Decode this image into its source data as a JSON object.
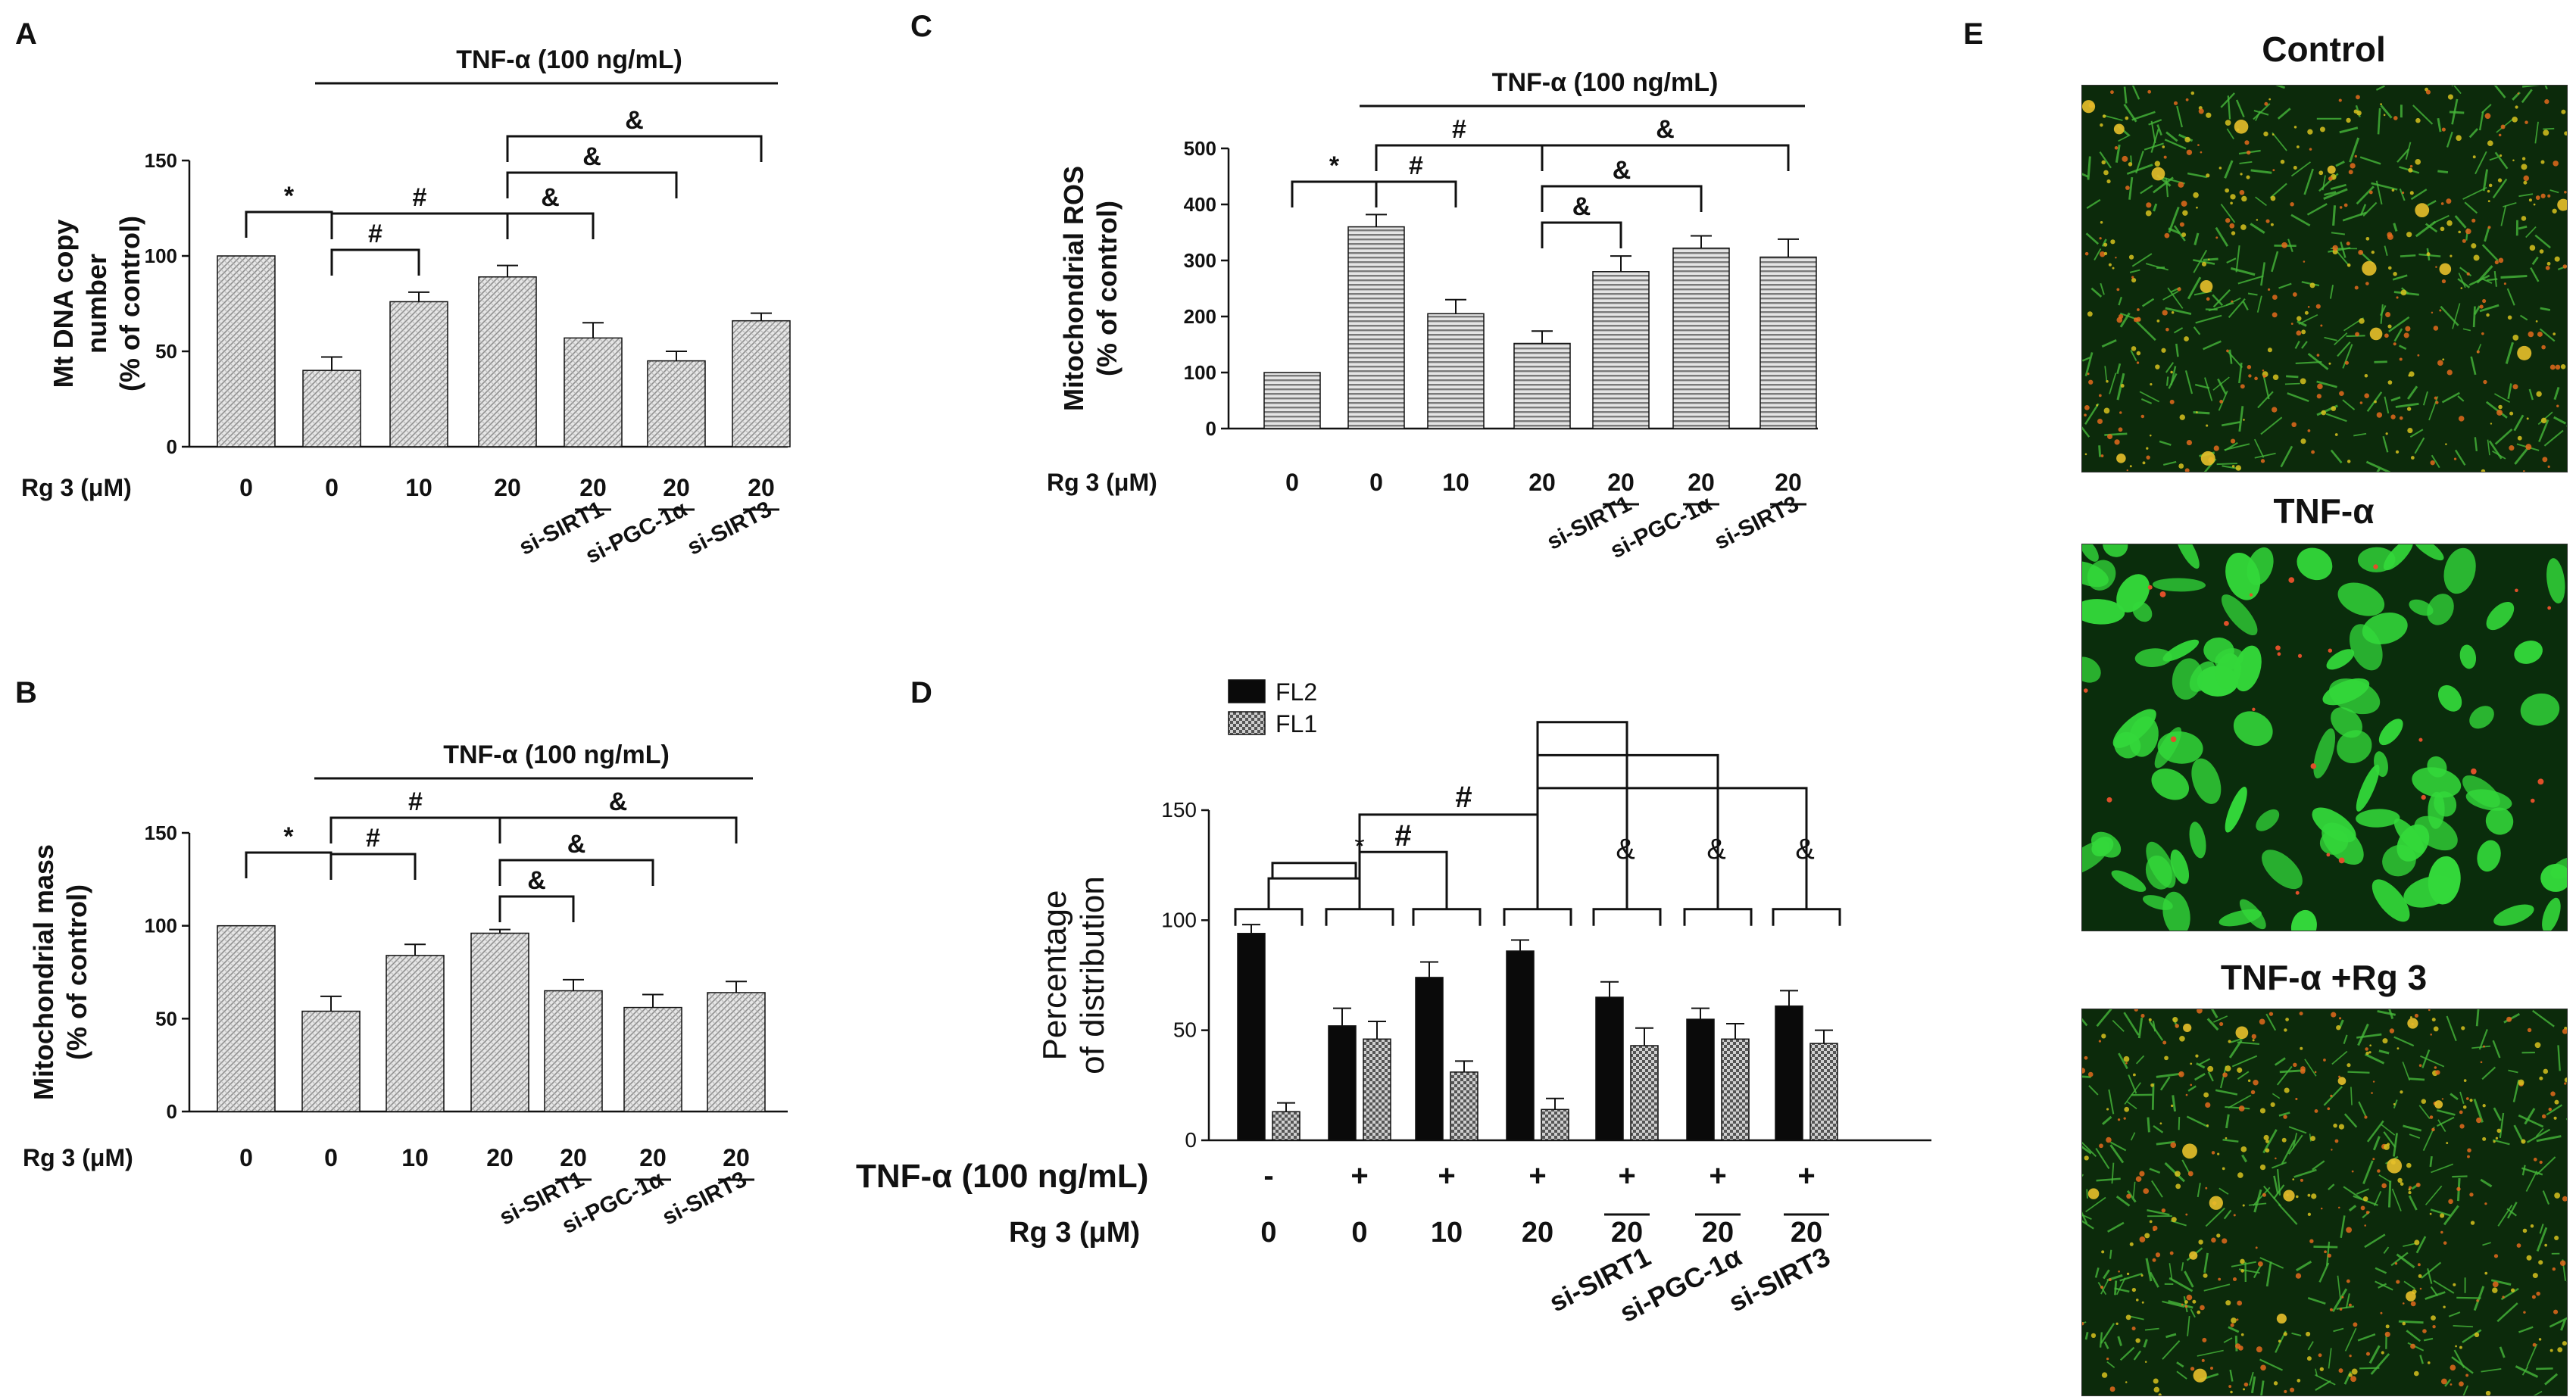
{
  "colors": {
    "bar_hatch": "#d9d9d9",
    "bar_hlines": "#8a8a8a",
    "bar_black": "#0a0a0a",
    "bar_checker": "#6f6f6f",
    "axis": "#111111",
    "micro_green": "#2fd12f",
    "micro_red": "#e0601a"
  },
  "chart_data": [
    {
      "panel": "A",
      "type": "bar",
      "ylabel": [
        "Mt DNA copy",
        "number",
        "(% of control)"
      ],
      "ylim": [
        0,
        150
      ],
      "yticks": [
        "0",
        "50",
        "100",
        "150"
      ],
      "xlabel": "Rg 3 (μM)",
      "categories": [
        "0",
        "0",
        "10",
        "20",
        "20",
        "20",
        "20"
      ],
      "values": [
        100,
        40,
        76,
        89,
        57,
        45,
        66
      ],
      "errors": [
        0,
        7,
        5,
        6,
        8,
        5,
        4
      ],
      "si_labels": [
        "si-SIRT1",
        "si-PGC-1α",
        "si-SIRT3"
      ],
      "treatment_label": "TNF-α (100 ng/mL)",
      "significance": [
        {
          "mark": "*",
          "from": 0,
          "to": 1,
          "level": 0
        },
        {
          "mark": "#",
          "from": 1,
          "to": 2,
          "level": 0
        },
        {
          "mark": "#",
          "from": 1,
          "to": 3,
          "level": 1
        },
        {
          "mark": "&",
          "from": 3,
          "to": 4,
          "level": 0
        },
        {
          "mark": "&",
          "from": 3,
          "to": 5,
          "level": 1
        },
        {
          "mark": "&",
          "from": 3,
          "to": 6,
          "level": 2
        }
      ]
    },
    {
      "panel": "B",
      "type": "bar",
      "ylabel": [
        "Mitochondrial mass",
        "(% of control)"
      ],
      "ylim": [
        0,
        150
      ],
      "yticks": [
        "0",
        "50",
        "100",
        "150"
      ],
      "xlabel": "Rg 3 (μM)",
      "categories": [
        "0",
        "0",
        "10",
        "20",
        "20",
        "20",
        "20"
      ],
      "values": [
        100,
        54,
        84,
        96,
        65,
        56,
        64
      ],
      "errors": [
        0,
        8,
        6,
        2,
        6,
        7,
        6
      ],
      "si_labels": [
        "si-SIRT1",
        "si-PGC-1α",
        "si-SIRT3"
      ],
      "treatment_label": "TNF-α (100 ng/mL)",
      "significance": [
        {
          "mark": "*",
          "from": 0,
          "to": 1,
          "level": 0
        },
        {
          "mark": "#",
          "from": 1,
          "to": 2,
          "level": 0
        },
        {
          "mark": "#",
          "from": 1,
          "to": 3,
          "level": 1
        },
        {
          "mark": "&",
          "from": 3,
          "to": 4,
          "level": 0
        },
        {
          "mark": "&",
          "from": 3,
          "to": 5,
          "level": 1
        },
        {
          "mark": "&",
          "from": 3,
          "to": 6,
          "level": 2
        }
      ]
    },
    {
      "panel": "C",
      "type": "bar",
      "ylabel": [
        "Mitochondrial ROS",
        "(% of control)"
      ],
      "ylim": [
        0,
        500
      ],
      "yticks": [
        "0",
        "100",
        "200",
        "300",
        "400",
        "500"
      ],
      "xlabel": "Rg 3 (μM)",
      "categories": [
        "0",
        "0",
        "10",
        "20",
        "20",
        "20",
        "20"
      ],
      "values": [
        100,
        360,
        205,
        152,
        280,
        322,
        306
      ],
      "errors": [
        0,
        22,
        25,
        22,
        28,
        22,
        32
      ],
      "si_labels": [
        "si-SIRT1",
        "si-PGC-1α",
        "si-SIRT3"
      ],
      "treatment_label": "TNF-α (100 ng/mL)",
      "significance": [
        {
          "mark": "*",
          "from": 0,
          "to": 1,
          "level": 0
        },
        {
          "mark": "#",
          "from": 1,
          "to": 2,
          "level": 0
        },
        {
          "mark": "#",
          "from": 1,
          "to": 3,
          "level": 1
        },
        {
          "mark": "&",
          "from": 3,
          "to": 4,
          "level": 0
        },
        {
          "mark": "&",
          "from": 3,
          "to": 5,
          "level": 1
        },
        {
          "mark": "&",
          "from": 3,
          "to": 6,
          "level": 2
        }
      ]
    },
    {
      "panel": "D",
      "type": "bar",
      "ylabel": [
        "Percentage",
        "of distribution"
      ],
      "ylim": [
        0,
        150
      ],
      "yticks": [
        "0",
        "50",
        "100",
        "150"
      ],
      "legend": [
        "FL2",
        "FL1"
      ],
      "treatment_label": "TNF-α (100 ng/mL)",
      "treatment_signs": [
        "-",
        "+",
        "+",
        "+",
        "+",
        "+",
        "+"
      ],
      "xlabel": "Rg 3 (μM)",
      "categories": [
        "0",
        "0",
        "10",
        "20",
        "20",
        "20",
        "20"
      ],
      "si_labels": [
        "si-SIRT1",
        "si-PGC-1α",
        "si-SIRT3"
      ],
      "series": [
        {
          "name": "FL2",
          "values": [
            94,
            52,
            74,
            86,
            65,
            55,
            61
          ],
          "errors": [
            4,
            8,
            7,
            5,
            7,
            5,
            7
          ]
        },
        {
          "name": "FL1",
          "values": [
            13,
            46,
            31,
            14,
            43,
            46,
            44
          ],
          "errors": [
            4,
            8,
            5,
            5,
            8,
            7,
            6
          ]
        }
      ],
      "significance": [
        {
          "mark": "*",
          "from": 0,
          "to": 1
        },
        {
          "mark": "#",
          "from": 1,
          "to": 2
        },
        {
          "mark": "#",
          "from": 1,
          "to": 3
        },
        {
          "mark": "&",
          "from": 3,
          "to": 4
        },
        {
          "mark": "&",
          "from": 3,
          "to": 5
        },
        {
          "mark": "&",
          "from": 3,
          "to": 6
        }
      ]
    }
  ],
  "panel_e": {
    "letter": "E",
    "images": [
      {
        "title": "Control",
        "style": "mixed"
      },
      {
        "title": "TNF-α",
        "style": "green"
      },
      {
        "title": "TNF-α +Rg 3",
        "style": "mixed"
      }
    ]
  }
}
